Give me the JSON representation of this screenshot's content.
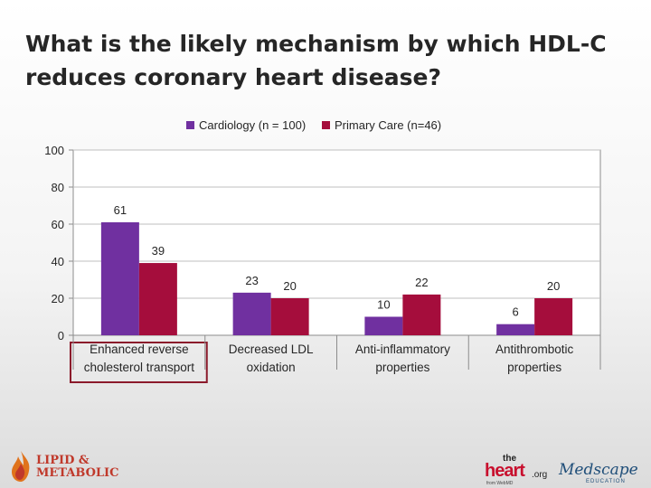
{
  "slide": {
    "title": "What is the likely mechanism by which HDL-C reduces coronary heart disease?"
  },
  "chart_data": {
    "type": "bar",
    "categories": [
      [
        "Enhanced reverse",
        "cholesterol transport"
      ],
      [
        "Decreased LDL",
        "oxidation"
      ],
      [
        "Anti-inflammatory",
        "properties"
      ],
      [
        "Antithrombotic",
        "properties"
      ]
    ],
    "series": [
      {
        "name": "Cardiology (n = 100)",
        "color": "#7030a0",
        "values": [
          61,
          23,
          10,
          6
        ]
      },
      {
        "name": "Primary Care (n=46)",
        "color": "#a50d3c",
        "values": [
          39,
          20,
          22,
          20
        ]
      }
    ],
    "ylim": [
      0,
      100
    ],
    "yticks": [
      0,
      20,
      40,
      60,
      80,
      100
    ],
    "grid": true,
    "legend": "top",
    "highlighted_category": 0,
    "highlight_color": "#8b1a2b"
  },
  "footer": {
    "left_logo": {
      "line1": "LIPID &",
      "line2": "METABOLIC",
      "icon": "flame-icon"
    },
    "right_logos": {
      "heart_the": "the",
      "heart_main": "heart",
      "heart_org": ".org",
      "heart_sub": "from WebMD",
      "medscape": "Medscape",
      "medscape_sub": "EDUCATION"
    }
  }
}
